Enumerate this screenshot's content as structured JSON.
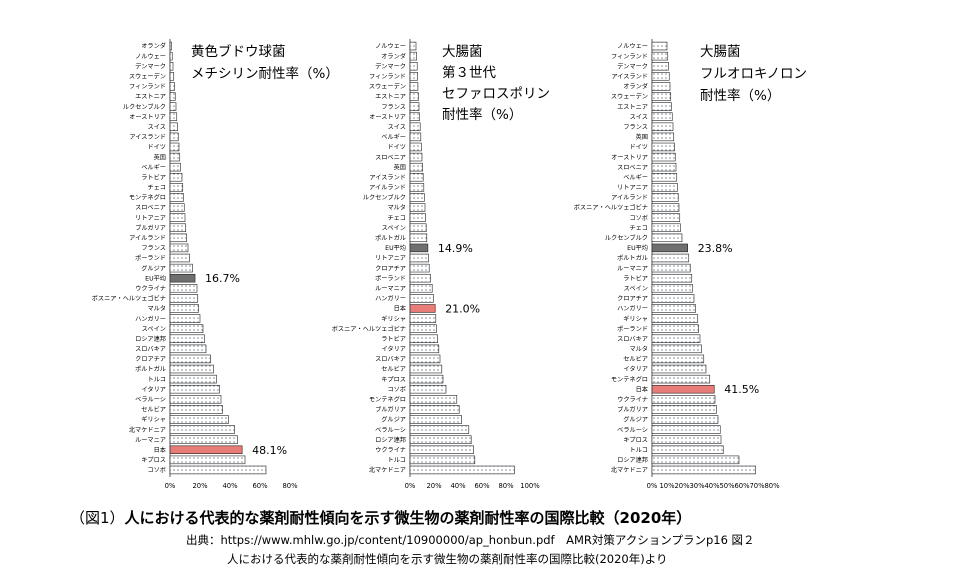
{
  "chart_data": [
    {
      "type": "bar",
      "orientation": "horizontal",
      "title_lines": [
        "黄色ブドウ球菌",
        "メチシリン耐性率（%）"
      ],
      "categories": [
        "オランダ",
        "ノルウェー",
        "デンマーク",
        "スウェーデン",
        "フィンランド",
        "エストニア",
        "ルクセンブルク",
        "オーストリア",
        "スイス",
        "アイスランド",
        "ドイツ",
        "英国",
        "ベルギー",
        "ラトビア",
        "チェコ",
        "モンテネグロ",
        "スロベニア",
        "リトアニア",
        "ブルガリア",
        "アイルランド",
        "フランス",
        "ポーランド",
        "グルジア",
        "EU平均",
        "ウクライナ",
        "ボスニア・ヘルツェゴビナ",
        "マルタ",
        "ハンガリー",
        "スペイン",
        "ロシア連邦",
        "スロバキア",
        "クロアチア",
        "ポルトガル",
        "トルコ",
        "イタリア",
        "ベラルーシ",
        "セルビア",
        "ギリシャ",
        "北マケドニア",
        "ルーマニア",
        "日本",
        "キプロス",
        "コソボ"
      ],
      "values": [
        1.0,
        1.5,
        2.0,
        2.5,
        3.0,
        3.5,
        4.0,
        4.5,
        5.0,
        5.5,
        6.0,
        6.5,
        7.0,
        8.0,
        8.5,
        9.0,
        9.5,
        10.0,
        10.5,
        11.0,
        12.0,
        13.0,
        15.0,
        16.7,
        18.0,
        18.5,
        19.0,
        20.0,
        22.0,
        23.0,
        24.0,
        27.0,
        29.0,
        31.0,
        33.0,
        34.0,
        35.0,
        39.0,
        43.0,
        45.0,
        48.1,
        50.0,
        64.0
      ],
      "highlight": {
        "EU平均": "eu",
        "日本": "japan"
      },
      "value_labels": [
        {
          "category": "EU平均",
          "text": "16.7%"
        },
        {
          "category": "日本",
          "text": "48.1%"
        }
      ],
      "xlim": [
        0,
        80
      ],
      "xticks": [
        "0%",
        "20%",
        "40%",
        "60%",
        "80%"
      ]
    },
    {
      "type": "bar",
      "orientation": "horizontal",
      "title_lines": [
        "大腸菌",
        "第３世代",
        "セファロスポリン",
        "耐性率（%）"
      ],
      "categories": [
        "ノルウェー",
        "オランダ",
        "デンマーク",
        "フィンランド",
        "スウェーデン",
        "エストニア",
        "フランス",
        "オーストリア",
        "スイス",
        "ベルギー",
        "ドイツ",
        "スロベニア",
        "英国",
        "アイスランド",
        "アイルランド",
        "ルクセンブルク",
        "マルタ",
        "チェコ",
        "スペイン",
        "ポルトガル",
        "EU平均",
        "リトアニア",
        "クロアチア",
        "ポーランド",
        "ルーマニア",
        "ハンガリー",
        "日本",
        "ギリシャ",
        "ボスニア・ヘルツェゴビナ",
        "ラトビア",
        "イタリア",
        "スロバキア",
        "セルビア",
        "キプロス",
        "コソボ",
        "モンテネグロ",
        "ブルガリア",
        "グルジア",
        "ベラルーシ",
        "ロシア連邦",
        "ウクライナ",
        "トルコ",
        "北マケドニア"
      ],
      "values": [
        5.0,
        5.5,
        6.0,
        6.3,
        6.6,
        7.0,
        7.5,
        8.0,
        8.5,
        9.0,
        9.5,
        10.0,
        10.5,
        11.0,
        11.5,
        12.0,
        12.5,
        13.0,
        13.5,
        14.0,
        14.9,
        15.5,
        16.0,
        17.0,
        18.5,
        19.5,
        21.0,
        21.5,
        22.0,
        23.0,
        24.0,
        25.0,
        26.5,
        27.5,
        30.0,
        39.0,
        41.0,
        43.0,
        49.0,
        51.0,
        53.0,
        54.0,
        87.0
      ],
      "highlight": {
        "EU平均": "eu",
        "日本": "japan"
      },
      "value_labels": [
        {
          "category": "EU平均",
          "text": "14.9%"
        },
        {
          "category": "日本",
          "text": "21.0%"
        }
      ],
      "xlim": [
        0,
        100
      ],
      "xticks": [
        "0%",
        "20%",
        "40%",
        "60%",
        "80%",
        "100%"
      ]
    },
    {
      "type": "bar",
      "orientation": "horizontal",
      "title_lines": [
        "大腸菌",
        "フルオロキノロン",
        "耐性率（%）"
      ],
      "categories": [
        "ノルウェー",
        "フィンランド",
        "デンマーク",
        "アイスランド",
        "オランダ",
        "スウェーデン",
        "エストニア",
        "スイス",
        "フランス",
        "英国",
        "ドイツ",
        "オーストリア",
        "スロベニア",
        "ベルギー",
        "リトアニア",
        "アイルランド",
        "ボスニア・ヘルツェゴビナ",
        "コソボ",
        "チェコ",
        "ルクセンブルク",
        "EU平均",
        "ポルトガル",
        "ルーマニア",
        "ラトビア",
        "スペイン",
        "クロアチア",
        "ハンガリー",
        "ギリシャ",
        "ポーランド",
        "スロバキア",
        "マルタ",
        "セルビア",
        "イタリア",
        "モンテネグロ",
        "日本",
        "ウクライナ",
        "ブルガリア",
        "グルジア",
        "ベラルーシ",
        "キプロス",
        "トルコ",
        "ロシア連邦",
        "北マケドニア"
      ],
      "values": [
        10.0,
        10.5,
        11.0,
        11.5,
        12.0,
        12.5,
        13.0,
        13.5,
        14.0,
        14.5,
        15.0,
        15.5,
        16.0,
        16.5,
        17.0,
        17.5,
        18.0,
        18.5,
        19.0,
        20.0,
        23.8,
        24.5,
        25.5,
        26.5,
        27.0,
        28.0,
        29.0,
        30.5,
        31.0,
        32.0,
        33.0,
        34.5,
        36.0,
        38.5,
        41.5,
        42.0,
        43.0,
        44.0,
        45.5,
        46.0,
        47.5,
        58.0,
        69.0
      ],
      "highlight": {
        "EU平均": "eu",
        "日本": "japan"
      },
      "value_labels": [
        {
          "category": "EU平均",
          "text": "23.8%"
        },
        {
          "category": "日本",
          "text": "41.5%"
        }
      ],
      "xlim": [
        0,
        80
      ],
      "xticks": [
        "0%",
        "10%",
        "20%",
        "30%",
        "40%",
        "50%",
        "60%",
        "70%",
        "80%"
      ]
    }
  ],
  "colors": {
    "bar_fill": "#ffffff",
    "bar_dots": "#7f8a99",
    "eu_bar": "#6f6f6f",
    "japan_bar": "#e87c78",
    "text": "#000000"
  },
  "caption": {
    "prefix": "（図1）",
    "text": "人における代表的な薬剤耐性傾向を示す微生物の薬剤耐性率の国際比較（2020年）"
  },
  "source": {
    "line1": "出典：https://www.mhlw.go.jp/content/10900000/ap_honbun.pdf　AMR対策アクションプランp16 図２",
    "line2": "人における代表的な薬剤耐性傾向を示す微生物の薬剤耐性率の国際比較(2020年)より"
  }
}
